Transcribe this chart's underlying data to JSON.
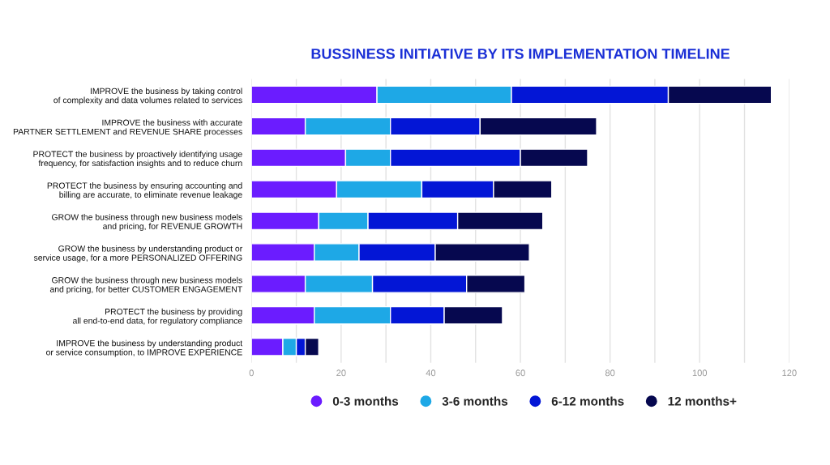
{
  "chart_data": {
    "type": "bar",
    "orientation": "horizontal",
    "stacked": true,
    "title": "BUSSINESS INITIATIVE BY ITS IMPLEMENTATION TIMELINE",
    "categories": [
      "IMPROVE the business by taking control\nof complexity and data volumes related to services",
      "IMPROVE the business with accurate\nPARTNER SETTLEMENT and REVENUE SHARE processes",
      "PROTECT the business by proactively identifying usage\nfrequency, for satisfaction insights and to reduce churn",
      "PROTECT the business by ensuring accounting and\nbilling are accurate, to eliminate revenue leakage",
      "GROW the business through new business models\nand pricing, for REVENUE GROWTH",
      "GROW the business by understanding product or\nservice usage, for a more PERSONALIZED OFFERING",
      "GROW the business through new business models\nand pricing, for better CUSTOMER ENGAGEMENT",
      "PROTECT the business by providing\nall end-to-end data, for regulatory compliance",
      "IMPROVE the business by understanding product\nor service consumption, to IMPROVE EXPERIENCE"
    ],
    "series": [
      {
        "name": "0-3 months",
        "color": "#6b1cff",
        "values": [
          28,
          12,
          21,
          19,
          15,
          14,
          12,
          14,
          7
        ]
      },
      {
        "name": "3-6 months",
        "color": "#1ea8e6",
        "values": [
          30,
          19,
          10,
          19,
          11,
          10,
          15,
          17,
          3
        ]
      },
      {
        "name": "6-12 months",
        "color": "#0316d6",
        "values": [
          35,
          20,
          29,
          16,
          20,
          17,
          21,
          12,
          2
        ]
      },
      {
        "name": "12 months+",
        "color": "#06084f",
        "values": [
          23,
          26,
          15,
          13,
          19,
          21,
          13,
          13,
          3
        ]
      }
    ],
    "xlim": [
      0,
      120
    ],
    "xticks": [
      0,
      {
        "value": 10,
        "label": null
      },
      20,
      {
        "value": 30,
        "label": null
      },
      40,
      {
        "value": 50,
        "label": null
      },
      60,
      {
        "value": 70,
        "label": null
      },
      80,
      {
        "value": 90,
        "label": null
      },
      100,
      {
        "value": 110,
        "label": null
      },
      120
    ],
    "grid": "x",
    "legend": "bottom"
  }
}
